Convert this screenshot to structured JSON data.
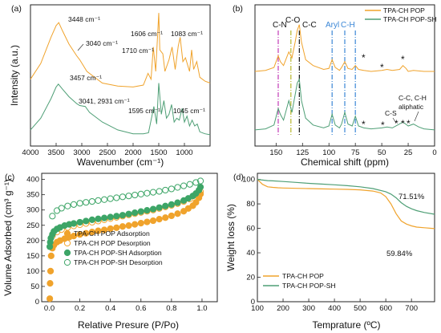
{
  "panels": {
    "a": {
      "label": "(a)",
      "xlabel": "Wavenumber (cm⁻¹)",
      "ylabel": "Intensity (a.u.)",
      "xticks": [
        "4000",
        "3500",
        "3000",
        "2500",
        "2000",
        "1500",
        "1000"
      ],
      "annotations": {
        "top": [
          "3448 cm⁻¹",
          "3040 cm⁻¹",
          "1606 cm⁻¹",
          "1710 cm⁻¹",
          "1083 cm⁻¹"
        ],
        "bottom": [
          "3457 cm⁻¹",
          "3041, 2931 cm⁻¹",
          "1595 cm⁻¹",
          "1045 cm⁻¹"
        ]
      }
    },
    "b": {
      "label": "(b)",
      "xlabel": "Chemical shift (ppm)",
      "xticks": [
        "150",
        "125",
        "100",
        "75",
        "50",
        "25",
        "0"
      ],
      "assign_labels": [
        "C-N",
        "C-O",
        "C-C",
        "Aryl",
        "C-H",
        "C-S",
        "C-C, C-H",
        "aliphatic"
      ],
      "star": "*",
      "legend": [
        "TPA-CH POP",
        "TPA-CH POP-SH"
      ]
    },
    "c": {
      "label": "(c)",
      "xlabel": "Relative Presure (P/Po)",
      "ylabel": "Volume Adsorbed (cm³ g⁻¹)",
      "xticks": [
        "0.0",
        "0.2",
        "0.4",
        "0.6",
        "0.8",
        "1.0"
      ],
      "yticks": [
        "0",
        "50",
        "100",
        "150",
        "200",
        "250",
        "300",
        "350",
        "400"
      ],
      "legend": [
        "TPA-CH POP Adsorption",
        "TPA-CH POP Desorption",
        "TPA-CH POP-SH Adsorption",
        "TPA-CH POP-SH Desorption"
      ]
    },
    "d": {
      "label": "(d)",
      "xlabel": "Temprature (ºC)",
      "ylabel": "Weight loss (%)",
      "xticks": [
        "100",
        "200",
        "300",
        "400",
        "500",
        "600",
        "700"
      ],
      "yticks": [
        "0",
        "20",
        "40",
        "60",
        "80",
        "100"
      ],
      "annotations": [
        "71.51%",
        "59.84%"
      ],
      "legend": [
        "TPA-CH POP",
        "TPA-CH POP-SH"
      ]
    }
  },
  "colors": {
    "pop": "#f0a32c",
    "popsh": "#4f9f76",
    "popsh_marker": "#3da567",
    "cn": "#c23bb5",
    "co": "#b5b52a",
    "cc": "#111111",
    "aryl": "#3a86d6"
  },
  "chart_data": [
    {
      "type": "line",
      "title": "(a)",
      "xlabel": "Wavenumber (cm⁻¹)",
      "ylabel": "Intensity (a.u.)",
      "xlim": [
        4000,
        500
      ],
      "x_reversed": true,
      "series": [
        {
          "name": "TPA-CH POP",
          "x": [
            4000,
            3800,
            3600,
            3500,
            3448,
            3380,
            3250,
            3100,
            3040,
            2900,
            2600,
            2300,
            2000,
            1800,
            1710,
            1650,
            1606,
            1560,
            1500,
            1480,
            1420,
            1380,
            1300,
            1240,
            1180,
            1120,
            1083,
            1030,
            980,
            900,
            860,
            820,
            760,
            700,
            600,
            500
          ],
          "y": [
            0.62,
            0.78,
            1.05,
            1.17,
            1.2,
            1.12,
            0.98,
            0.86,
            0.82,
            0.7,
            0.58,
            0.55,
            0.54,
            0.56,
            0.68,
            0.62,
            0.95,
            0.7,
            1.3,
            0.92,
            0.88,
            0.7,
            0.82,
            0.95,
            0.72,
            0.96,
            1.05,
            0.8,
            0.84,
            0.7,
            0.92,
            0.72,
            0.8,
            0.64,
            0.6,
            0.58
          ]
        },
        {
          "name": "TPA-CH POP-SH",
          "x": [
            4000,
            3800,
            3600,
            3500,
            3457,
            3380,
            3250,
            3100,
            3041,
            2931,
            2850,
            2600,
            2300,
            2000,
            1800,
            1700,
            1595,
            1540,
            1500,
            1450,
            1400,
            1350,
            1300,
            1250,
            1200,
            1150,
            1100,
            1045,
            1000,
            950,
            900,
            850,
            800,
            750,
            700,
            600,
            500
          ],
          "y": [
            0.1,
            0.22,
            0.42,
            0.54,
            0.57,
            0.52,
            0.44,
            0.37,
            0.35,
            0.34,
            0.28,
            0.18,
            0.1,
            0.06,
            0.06,
            0.07,
            0.34,
            0.16,
            0.58,
            0.26,
            0.4,
            0.22,
            0.26,
            0.36,
            0.18,
            0.22,
            0.2,
            0.32,
            0.18,
            0.24,
            0.14,
            0.2,
            0.14,
            0.16,
            0.08,
            0.06,
            0.05
          ]
        }
      ]
    },
    {
      "type": "line",
      "title": "(b)",
      "xlabel": "Chemical shift (ppm)",
      "xlim": [
        170,
        0
      ],
      "x_reversed": true,
      "series": [
        {
          "name": "TPA-CH POP",
          "x": [
            170,
            160,
            152,
            148,
            146,
            143,
            138,
            135,
            132,
            130,
            128,
            126,
            122,
            115,
            105,
            100,
            97,
            94,
            90,
            88,
            85,
            82,
            78,
            75,
            72,
            67,
            60,
            50,
            45,
            40,
            33,
            30,
            27,
            25,
            20,
            10,
            0
          ],
          "y": [
            0.7,
            0.71,
            0.74,
            0.86,
            0.8,
            0.76,
            0.9,
            0.84,
            1.0,
            1.12,
            1.18,
            1.0,
            0.82,
            0.76,
            0.72,
            0.73,
            0.82,
            0.74,
            0.71,
            0.74,
            0.8,
            0.73,
            0.72,
            0.76,
            0.72,
            0.71,
            0.7,
            0.71,
            0.72,
            0.71,
            0.72,
            0.76,
            0.73,
            0.7,
            0.71,
            0.7,
            0.7
          ]
        },
        {
          "name": "TPA-CH POP-SH",
          "x": [
            170,
            160,
            152,
            148,
            146,
            143,
            138,
            135,
            132,
            130,
            128,
            126,
            122,
            115,
            105,
            100,
            97,
            94,
            90,
            88,
            85,
            82,
            78,
            75,
            72,
            67,
            60,
            50,
            45,
            40,
            35,
            30,
            25,
            20,
            15,
            10,
            0
          ],
          "y": [
            0.1,
            0.11,
            0.15,
            0.32,
            0.26,
            0.2,
            0.4,
            0.28,
            0.46,
            0.58,
            0.62,
            0.4,
            0.22,
            0.15,
            0.12,
            0.14,
            0.26,
            0.15,
            0.12,
            0.16,
            0.28,
            0.16,
            0.14,
            0.24,
            0.14,
            0.12,
            0.11,
            0.12,
            0.13,
            0.12,
            0.15,
            0.18,
            0.14,
            0.16,
            0.13,
            0.11,
            0.1
          ]
        }
      ]
    },
    {
      "type": "scatter",
      "title": "(c)",
      "xlabel": "Relative Presure (P/Po)",
      "ylabel": "Volume Adsorbed (cm³ g⁻¹)",
      "xlim": [
        -0.05,
        1.1
      ],
      "ylim": [
        0,
        420
      ],
      "series": [
        {
          "name": "TPA-CH POP Adsorption",
          "x": [
            0.003,
            0.005,
            0.008,
            0.012,
            0.02,
            0.03,
            0.05,
            0.07,
            0.1,
            0.13,
            0.16,
            0.2,
            0.24,
            0.28,
            0.32,
            0.36,
            0.4,
            0.44,
            0.48,
            0.52,
            0.56,
            0.6,
            0.64,
            0.68,
            0.72,
            0.76,
            0.8,
            0.84,
            0.88,
            0.91,
            0.94,
            0.96,
            0.98,
            0.99
          ],
          "y": [
            10,
            60,
            100,
            150,
            175,
            185,
            195,
            200,
            206,
            211,
            215,
            220,
            224,
            228,
            232,
            235,
            239,
            242,
            246,
            249,
            253,
            257,
            261,
            265,
            270,
            275,
            281,
            288,
            296,
            305,
            314,
            325,
            340,
            352
          ]
        },
        {
          "name": "TPA-CH POP Desorption",
          "x": [
            0.99,
            0.96,
            0.92,
            0.88,
            0.84,
            0.8,
            0.76,
            0.72,
            0.68,
            0.64,
            0.6,
            0.56,
            0.52,
            0.48,
            0.44,
            0.4,
            0.36,
            0.32,
            0.28,
            0.24,
            0.2,
            0.16,
            0.12,
            0.08,
            0.05,
            0.02
          ],
          "y": [
            360,
            348,
            336,
            328,
            321,
            315,
            310,
            305,
            300,
            296,
            292,
            288,
            284,
            280,
            276,
            272,
            268,
            264,
            260,
            256,
            252,
            248,
            243,
            236,
            228,
            215
          ]
        },
        {
          "name": "TPA-CH POP-SH Adsorption",
          "x": [
            0.003,
            0.006,
            0.01,
            0.02,
            0.03,
            0.05,
            0.07,
            0.1,
            0.13,
            0.16,
            0.2,
            0.24,
            0.28,
            0.32,
            0.36,
            0.4,
            0.44,
            0.48,
            0.52,
            0.56,
            0.6,
            0.64,
            0.68,
            0.72,
            0.76,
            0.8,
            0.84,
            0.88,
            0.91,
            0.94,
            0.96,
            0.98,
            0.99
          ],
          "y": [
            180,
            195,
            208,
            220,
            230,
            238,
            243,
            249,
            253,
            256,
            260,
            264,
            268,
            271,
            274,
            277,
            280,
            283,
            287,
            291,
            295,
            299,
            303,
            308,
            313,
            318,
            324,
            331,
            338,
            346,
            354,
            365,
            375
          ]
        },
        {
          "name": "TPA-CH POP-SH Desorption",
          "x": [
            0.99,
            0.96,
            0.92,
            0.88,
            0.84,
            0.8,
            0.76,
            0.72,
            0.68,
            0.64,
            0.6,
            0.56,
            0.52,
            0.48,
            0.44,
            0.4,
            0.36,
            0.32,
            0.28,
            0.24,
            0.2,
            0.16,
            0.12,
            0.08,
            0.05,
            0.02
          ],
          "y": [
            395,
            390,
            384,
            379,
            374,
            369,
            365,
            361,
            358,
            355,
            352,
            349,
            346,
            343,
            340,
            337,
            334,
            331,
            328,
            325,
            322,
            318,
            313,
            306,
            298,
            280
          ]
        }
      ]
    },
    {
      "type": "line",
      "title": "(d)",
      "xlabel": "Temprature (ºC)",
      "ylabel": "Weight loss (%)",
      "xlim": [
        100,
        790
      ],
      "ylim": [
        0,
        105
      ],
      "series": [
        {
          "name": "TPA-CH POP",
          "x": [
            100,
            120,
            140,
            160,
            180,
            200,
            250,
            300,
            350,
            400,
            450,
            500,
            550,
            580,
            600,
            620,
            640,
            660,
            680,
            700,
            720,
            750,
            790
          ],
          "y": [
            100,
            96,
            94,
            93.5,
            93.2,
            93,
            92.7,
            92.5,
            92.3,
            92.1,
            91.9,
            91.5,
            90.5,
            89,
            86,
            80,
            72,
            66,
            63.5,
            62,
            61,
            60.5,
            59.8
          ]
        },
        {
          "name": "TPA-CH POP-SH",
          "x": [
            100,
            120,
            140,
            160,
            200,
            250,
            300,
            350,
            400,
            450,
            500,
            550,
            600,
            620,
            640,
            660,
            680,
            700,
            720,
            750,
            790
          ],
          "y": [
            100,
            99.5,
            99,
            98.8,
            98.3,
            97.6,
            96.8,
            96.2,
            95.6,
            94.9,
            94,
            92.5,
            90,
            88,
            85,
            81,
            78,
            76,
            74.5,
            73,
            71.5
          ]
        }
      ]
    }
  ]
}
